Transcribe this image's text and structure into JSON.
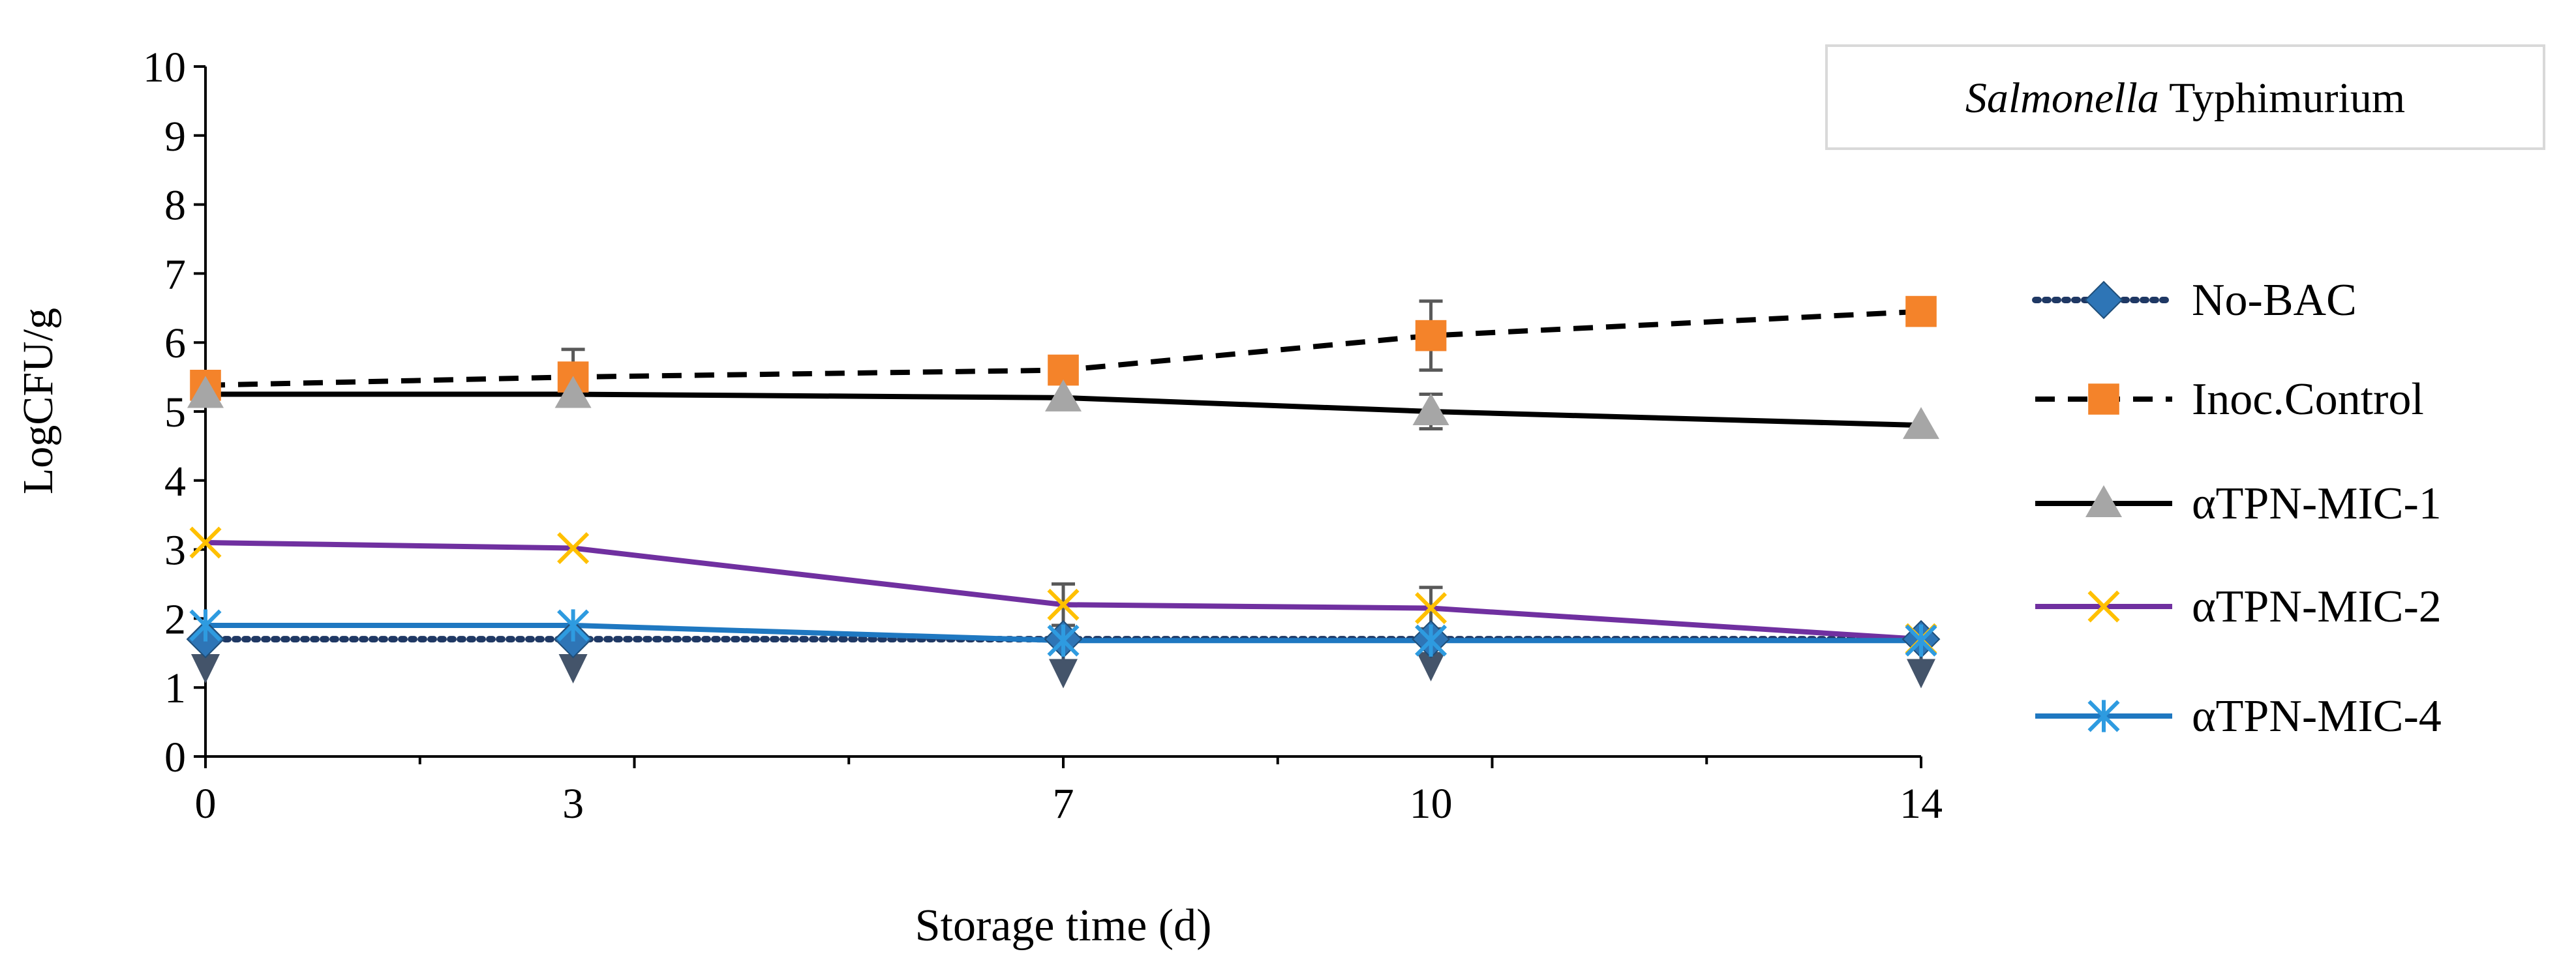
{
  "chart_data": {
    "type": "line",
    "title": "Typhimurium",
    "title_italic": "Salmonella",
    "xlabel": "Storage time (d)",
    "ylabel": "LogCFU/g",
    "x": [
      0,
      3,
      7,
      10,
      14
    ],
    "x_tick_labels": [
      "0",
      "3",
      "7",
      "10",
      "14"
    ],
    "ylim": [
      0,
      10
    ],
    "y_ticks": [
      0,
      1,
      2,
      3,
      4,
      5,
      6,
      7,
      8,
      9,
      10
    ],
    "grid": false,
    "legend_position": "right",
    "series": [
      {
        "name": "No-BAC",
        "marker": "diamond",
        "line": "dotted",
        "color": "#1F3864",
        "marker_color": "#2E75B6",
        "values": [
          1.7,
          1.7,
          1.7,
          1.7,
          1.7
        ]
      },
      {
        "name": "Inoc.Control",
        "marker": "square",
        "line": "dashed",
        "color": "#000000",
        "marker_color": "#F4832A",
        "values": [
          5.38,
          5.5,
          5.6,
          6.1,
          6.45
        ],
        "error": [
          0.05,
          0.4,
          0.05,
          0.5,
          0.05
        ]
      },
      {
        "name": "αTPN-MIC-1",
        "marker": "triangle",
        "line": "solid",
        "color": "#000000",
        "marker_color": "#A6A6A6",
        "values": [
          5.25,
          5.25,
          5.2,
          5.0,
          4.8
        ],
        "error": [
          0.05,
          0.05,
          0.05,
          0.25,
          0.05
        ]
      },
      {
        "name": "αTPN-MIC-2",
        "marker": "x",
        "line": "solid",
        "color": "#7030A0",
        "marker_color": "#FFC000",
        "values": [
          3.1,
          3.02,
          2.2,
          2.15,
          1.7
        ],
        "error": [
          0.05,
          0.05,
          0.3,
          0.3,
          0.05
        ]
      },
      {
        "name": "αTPN-MIC-4",
        "marker": "asterisk",
        "line": "solid",
        "color": "#1F78C1",
        "marker_color": "#2E9BE0",
        "values": [
          1.9,
          1.9,
          1.68,
          1.68,
          1.68
        ],
        "error": [
          0.7,
          0.7,
          0.55,
          0.45,
          0.55
        ]
      }
    ]
  }
}
